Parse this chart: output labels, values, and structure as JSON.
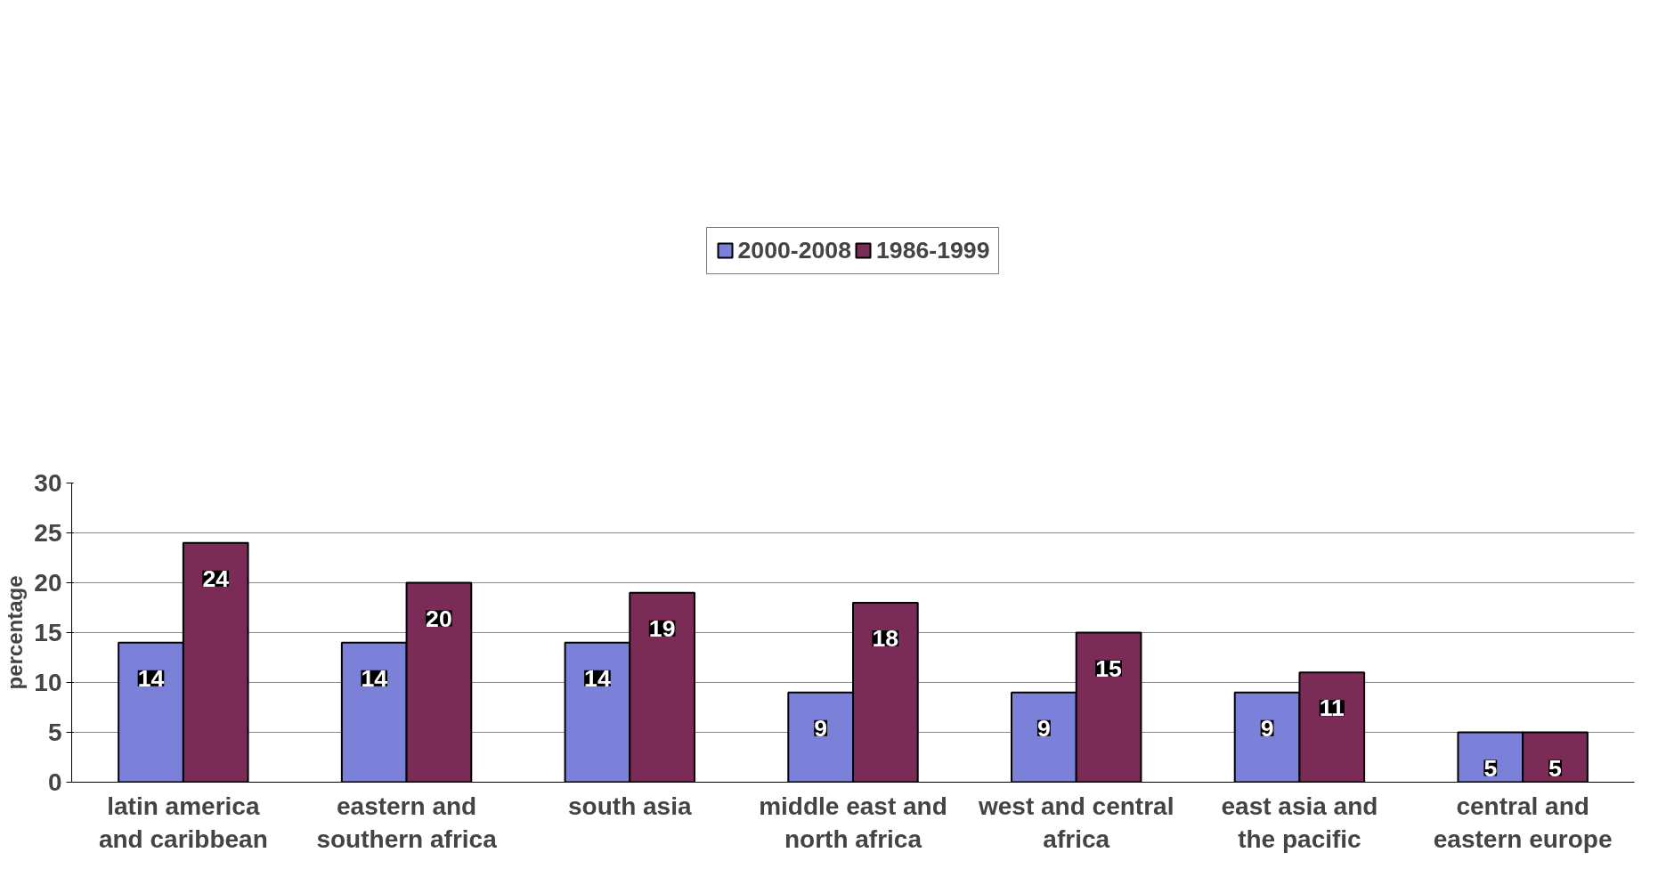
{
  "chart_data": {
    "type": "bar",
    "ylabel": "percentage",
    "categories": [
      "latin america and caribbean",
      "eastern and southern africa",
      "south asia",
      "middle east and north africa",
      "west and central africa",
      "east asia and the pacific",
      "central and eastern europe"
    ],
    "series": [
      {
        "name": "2000-2008",
        "color": "#7b80d8",
        "values": [
          14,
          14,
          14,
          9,
          9,
          9,
          5
        ]
      },
      {
        "name": "1986-1999",
        "color": "#7a2b56",
        "values": [
          24,
          20,
          19,
          18,
          15,
          11,
          5
        ]
      }
    ],
    "ylim": [
      0,
      30
    ],
    "yticks": [
      0,
      5,
      10,
      15,
      20,
      25,
      30
    ],
    "grid": "y",
    "legend": "top",
    "data_labels": true
  }
}
